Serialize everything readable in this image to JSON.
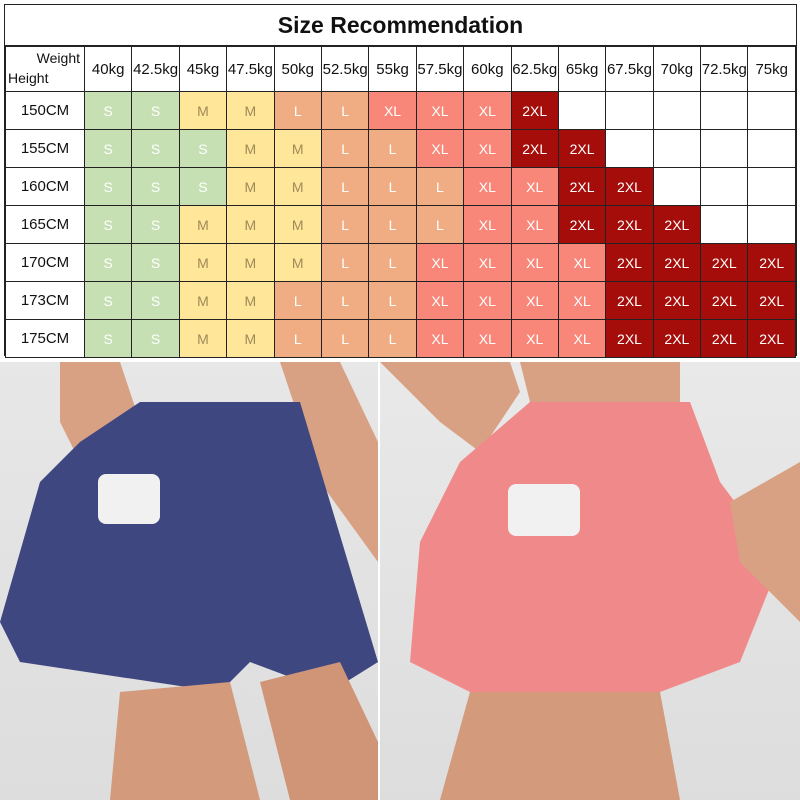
{
  "title": "Size Recommendation",
  "corner": {
    "weight": "Weight",
    "height": "Height"
  },
  "weights": [
    "40kg",
    "42.5kg",
    "45kg",
    "47.5kg",
    "50kg",
    "52.5kg",
    "55kg",
    "57.5kg",
    "60kg",
    "62.5kg",
    "65kg",
    "67.5kg",
    "70kg",
    "72.5kg",
    "75kg"
  ],
  "rows": [
    {
      "height": "150CM",
      "sizes": [
        "S",
        "S",
        "M",
        "M",
        "L",
        "L",
        "XL",
        "XL",
        "XL",
        "2XL",
        "",
        "",
        "",
        "",
        ""
      ]
    },
    {
      "height": "155CM",
      "sizes": [
        "S",
        "S",
        "S",
        "M",
        "M",
        "L",
        "L",
        "XL",
        "XL",
        "2XL",
        "2XL",
        "",
        "",
        "",
        ""
      ]
    },
    {
      "height": "160CM",
      "sizes": [
        "S",
        "S",
        "S",
        "M",
        "M",
        "L",
        "L",
        "L",
        "XL",
        "XL",
        "2XL",
        "2XL",
        "",
        "",
        ""
      ]
    },
    {
      "height": "165CM",
      "sizes": [
        "S",
        "S",
        "M",
        "M",
        "M",
        "L",
        "L",
        "L",
        "XL",
        "XL",
        "2XL",
        "2XL",
        "2XL",
        "",
        ""
      ]
    },
    {
      "height": "170CM",
      "sizes": [
        "S",
        "S",
        "M",
        "M",
        "M",
        "L",
        "L",
        "XL",
        "XL",
        "XL",
        "XL",
        "2XL",
        "2XL",
        "2XL",
        "2XL"
      ]
    },
    {
      "height": "173CM",
      "sizes": [
        "S",
        "S",
        "M",
        "M",
        "L",
        "L",
        "L",
        "XL",
        "XL",
        "XL",
        "XL",
        "2XL",
        "2XL",
        "2XL",
        "2XL"
      ]
    },
    {
      "height": "175CM",
      "sizes": [
        "S",
        "S",
        "M",
        "M",
        "L",
        "L",
        "L",
        "XL",
        "XL",
        "XL",
        "XL",
        "2XL",
        "2XL",
        "2XL",
        "2XL"
      ]
    }
  ],
  "colors": {
    "S": "#c6e0b4",
    "M": "#ffe699",
    "L": "#f0ad84",
    "XL": "#f8877a",
    "2XL": "#a50d0a"
  },
  "photos": [
    {
      "product_color": "#3f4780"
    },
    {
      "product_color": "#f08a8a"
    }
  ]
}
